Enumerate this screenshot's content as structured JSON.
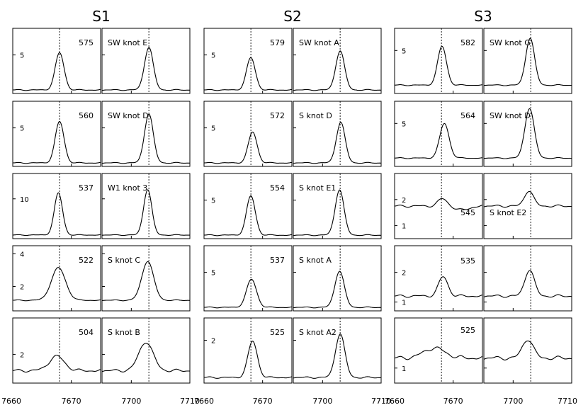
{
  "chart_data": {
    "type": "line",
    "x_ticks": {
      "left": [
        "7660",
        "7670"
      ],
      "right": [
        "7700",
        "7710"
      ]
    },
    "x_ranges": {
      "left": [
        7660,
        7675
      ],
      "right": [
        7695,
        7710
      ]
    },
    "reference_lines": {
      "left": 7668,
      "right": 7703
    },
    "groups": [
      {
        "title": "S1",
        "rows": [
          {
            "number": "575",
            "knot": "SW knot E",
            "yticks": [
              {
                "v": 5,
                "label": "5"
              }
            ],
            "ylim": [
              -0.5,
              8.8
            ],
            "left": {
              "base": 0,
              "peak": 5.3,
              "center": 7668,
              "sigma": 0.75,
              "extra": [],
              "noise": 0.05
            },
            "right": {
              "base": 0,
              "peak": 6.1,
              "center": 7703,
              "sigma": 0.75,
              "extra": [],
              "noise": 0.05
            }
          },
          {
            "number": "560",
            "knot": "SW knot D",
            "yticks": [
              {
                "v": 5,
                "label": "5"
              }
            ],
            "ylim": [
              -0.5,
              8.8
            ],
            "left": {
              "base": 0,
              "peak": 5.9,
              "center": 7668,
              "sigma": 0.75,
              "extra": [],
              "noise": 0.05
            },
            "right": {
              "base": 0,
              "peak": 7.0,
              "center": 7703,
              "sigma": 0.75,
              "extra": [],
              "noise": 0.05
            }
          },
          {
            "number": "537",
            "knot": "W1 knot 3",
            "yticks": [
              {
                "v": 10,
                "label": "10"
              }
            ],
            "ylim": [
              -1,
              17
            ],
            "left": {
              "base": 0,
              "peak": 11.6,
              "center": 7667.8,
              "sigma": 0.7,
              "extra": [],
              "noise": 0.08
            },
            "right": {
              "base": 0,
              "peak": 12.6,
              "center": 7702.8,
              "sigma": 0.7,
              "extra": [],
              "noise": 0.08
            }
          },
          {
            "number": "522",
            "knot": "S knot C",
            "yticks": [
              {
                "v": 2,
                "label": "2"
              },
              {
                "v": 4,
                "label": "4"
              }
            ],
            "ylim": [
              0.5,
              4.5
            ],
            "left": {
              "base": 1.15,
              "peak": 2.0,
              "center": 7667.8,
              "sigma": 1.2,
              "extra": [],
              "noise": 0.02
            },
            "right": {
              "base": 1.15,
              "peak": 2.4,
              "center": 7702.8,
              "sigma": 1.0,
              "extra": [],
              "noise": 0.02
            }
          },
          {
            "number": "504",
            "knot": "S knot B",
            "yticks": [
              {
                "v": 2,
                "label": "2"
              }
            ],
            "ylim": [
              0.5,
              3.9
            ],
            "left": {
              "base": 1.15,
              "peak": 0.75,
              "center": 7667.5,
              "sigma": 1.3,
              "extra": [],
              "noise": 0.05
            },
            "right": {
              "base": 1.15,
              "peak": 1.5,
              "center": 7702.5,
              "sigma": 1.2,
              "extra": [],
              "noise": 0.05
            }
          }
        ]
      },
      {
        "title": "S2",
        "rows": [
          {
            "number": "579",
            "knot": "SW knot A",
            "yticks": [
              {
                "v": 5,
                "label": "5"
              }
            ],
            "ylim": [
              -0.5,
              8.8
            ],
            "left": {
              "base": 0,
              "peak": 4.6,
              "center": 7668,
              "sigma": 0.75,
              "extra": [],
              "noise": 0.05
            },
            "right": {
              "base": 0,
              "peak": 5.6,
              "center": 7703,
              "sigma": 0.75,
              "extra": [],
              "noise": 0.05
            }
          },
          {
            "number": "572",
            "knot": "S knot D",
            "yticks": [
              {
                "v": 5,
                "label": "5"
              }
            ],
            "ylim": [
              -0.5,
              8.8
            ],
            "left": {
              "base": 0,
              "peak": 4.4,
              "center": 7668.3,
              "sigma": 0.75,
              "extra": [],
              "noise": 0.05
            },
            "right": {
              "base": 0,
              "peak": 5.8,
              "center": 7703.1,
              "sigma": 0.75,
              "extra": [],
              "noise": 0.05
            }
          },
          {
            "number": "554",
            "knot": "S knot E1",
            "yticks": [
              {
                "v": 5,
                "label": "5"
              }
            ],
            "ylim": [
              -0.5,
              8.8
            ],
            "left": {
              "base": 0,
              "peak": 5.6,
              "center": 7668,
              "sigma": 0.75,
              "extra": [],
              "noise": 0.05
            },
            "right": {
              "base": 0,
              "peak": 6.5,
              "center": 7702.9,
              "sigma": 0.75,
              "extra": [],
              "noise": 0.05
            }
          },
          {
            "number": "537",
            "knot": "S knot A",
            "yticks": [
              {
                "v": 5,
                "label": "5"
              }
            ],
            "ylim": [
              -0.5,
              8.8
            ],
            "left": {
              "base": 0,
              "peak": 4.0,
              "center": 7668.1,
              "sigma": 0.85,
              "extra": [],
              "noise": 0.05
            },
            "right": {
              "base": 0,
              "peak": 5.2,
              "center": 7702.9,
              "sigma": 0.8,
              "extra": [],
              "noise": 0.05
            }
          },
          {
            "number": "525",
            "knot": "S knot A2",
            "yticks": [
              {
                "v": 2,
                "label": "2"
              }
            ],
            "ylim": [
              -0.3,
              3.2
            ],
            "left": {
              "base": 0,
              "peak": 1.95,
              "center": 7668.3,
              "sigma": 0.8,
              "extra": [],
              "noise": 0.03
            },
            "right": {
              "base": 0,
              "peak": 2.35,
              "center": 7703,
              "sigma": 0.8,
              "extra": [],
              "noise": 0.03
            }
          }
        ]
      },
      {
        "title": "S3",
        "rows": [
          {
            "number": "582",
            "knot": "SW knot G",
            "yticks": [
              {
                "v": 5,
                "label": "5"
              }
            ],
            "ylim": [
              -1.2,
              8.2
            ],
            "left": {
              "base": 0,
              "peak": 5.6,
              "center": 7668.1,
              "sigma": 0.75,
              "extra": [],
              "noise": 0.05
            },
            "right": {
              "base": 0,
              "peak": 6.8,
              "center": 7702.9,
              "sigma": 0.75,
              "extra": [],
              "noise": 0.05
            }
          },
          {
            "number": "564",
            "knot": "SW knot D",
            "yticks": [
              {
                "v": 5,
                "label": "5"
              }
            ],
            "ylim": [
              -1.2,
              8.2
            ],
            "left": {
              "base": 0,
              "peak": 5.0,
              "center": 7668.5,
              "sigma": 0.8,
              "extra": [],
              "noise": 0.05
            },
            "right": {
              "base": 0,
              "peak": 7.2,
              "center": 7702.8,
              "sigma": 0.8,
              "extra": [],
              "noise": 0.05
            }
          },
          {
            "number": "545",
            "knot": "S knot E2",
            "yticks": [
              {
                "v": 1,
                "label": "1"
              },
              {
                "v": 2,
                "label": "2"
              }
            ],
            "ylim": [
              0.5,
              3.0
            ],
            "left": {
              "base": 1.75,
              "peak": 0.28,
              "center": 7668.2,
              "sigma": 0.8,
              "extra": [
                {
                  "a": -0.15,
                  "c": 7671.5,
                  "s": 1.2
                }
              ],
              "noise": 0.03
            },
            "right": {
              "base": 1.75,
              "peak": 0.6,
              "center": 7702.7,
              "sigma": 0.75,
              "extra": [],
              "noise": 0.03
            }
          },
          {
            "number": "535",
            "knot": "",
            "yticks": [
              {
                "v": 1,
                "label": "1"
              },
              {
                "v": 2,
                "label": "2"
              }
            ],
            "ylim": [
              0.7,
              2.9
            ],
            "left": {
              "base": 1.2,
              "peak": 0.65,
              "center": 7668.3,
              "sigma": 0.8,
              "extra": [],
              "noise": 0.03
            },
            "right": {
              "base": 1.2,
              "peak": 0.9,
              "center": 7702.8,
              "sigma": 0.8,
              "extra": [],
              "noise": 0.03
            }
          },
          {
            "number": "525",
            "knot": "",
            "yticks": [
              {
                "v": 1,
                "label": "1"
              }
            ],
            "ylim": [
              0.7,
              2.0
            ],
            "left": {
              "base": 1.2,
              "peak": 0.2,
              "center": 7666.8,
              "sigma": 1.8,
              "extra": [],
              "noise": 0.025
            },
            "right": {
              "base": 1.2,
              "peak": 0.38,
              "center": 7702.5,
              "sigma": 0.9,
              "extra": [],
              "noise": 0.025
            }
          }
        ]
      }
    ]
  }
}
